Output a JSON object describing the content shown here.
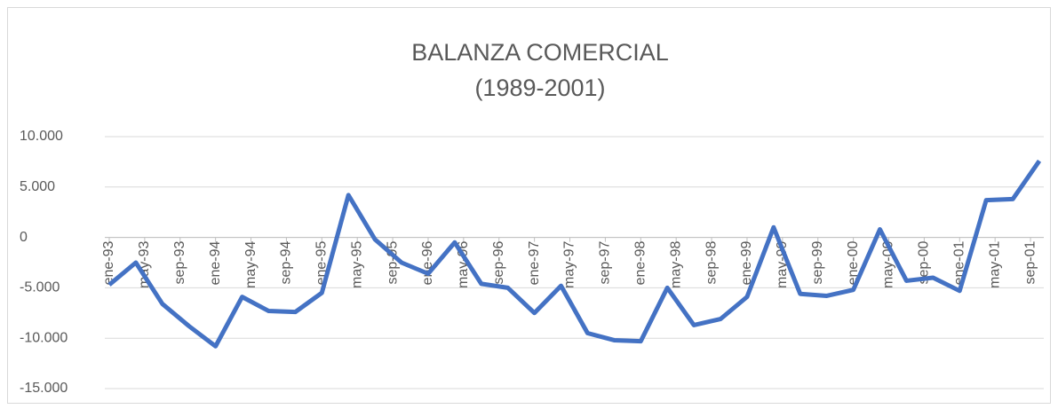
{
  "chart_data": {
    "type": "line",
    "title": [
      "BALANZA COMERCIAL",
      "(1989-2001)"
    ],
    "x": [
      0,
      3,
      6,
      9,
      12,
      15,
      18,
      21,
      24,
      27,
      30,
      33,
      36,
      39,
      42,
      45,
      48,
      51,
      54,
      57,
      60,
      63,
      66,
      69,
      72,
      75,
      78,
      81,
      84,
      87,
      90,
      93,
      96,
      99,
      102,
      105
    ],
    "series": [
      {
        "name": "Balanza comercial",
        "color": "#4472c4",
        "values": [
          -4700,
          -2500,
          -6600,
          -8800,
          -10800,
          -5900,
          -7300,
          -7400,
          -5500,
          4200,
          -200,
          -2500,
          -3600,
          -500,
          -4600,
          -5000,
          -7500,
          -4800,
          -9500,
          -10200,
          -10300,
          -5000,
          -8700,
          -8100,
          -5900,
          1000,
          -5600,
          -5800,
          -5200,
          800,
          -4300,
          -4000,
          -5300,
          3700,
          3800,
          7600
        ]
      }
    ],
    "xlim": [
      -0.5,
      105.5
    ],
    "xticks": [
      {
        "value": 0,
        "label": "ene-93"
      },
      {
        "value": 4,
        "label": "may-93"
      },
      {
        "value": 8,
        "label": "sep-93"
      },
      {
        "value": 12,
        "label": "ene-94"
      },
      {
        "value": 16,
        "label": "may-94"
      },
      {
        "value": 20,
        "label": "sep-94"
      },
      {
        "value": 24,
        "label": "ene-95"
      },
      {
        "value": 28,
        "label": "may-95"
      },
      {
        "value": 32,
        "label": "sep-95"
      },
      {
        "value": 36,
        "label": "ene-96"
      },
      {
        "value": 40,
        "label": "may-96"
      },
      {
        "value": 44,
        "label": "sep-96"
      },
      {
        "value": 48,
        "label": "ene-97"
      },
      {
        "value": 52,
        "label": "may-97"
      },
      {
        "value": 56,
        "label": "sep-97"
      },
      {
        "value": 60,
        "label": "ene-98"
      },
      {
        "value": 64,
        "label": "may-98"
      },
      {
        "value": 68,
        "label": "sep-98"
      },
      {
        "value": 72,
        "label": "ene-99"
      },
      {
        "value": 76,
        "label": "may-99"
      },
      {
        "value": 80,
        "label": "sep-99"
      },
      {
        "value": 84,
        "label": "ene-00"
      },
      {
        "value": 88,
        "label": "may-00"
      },
      {
        "value": 92,
        "label": "sep-00"
      },
      {
        "value": 96,
        "label": "ene-01"
      },
      {
        "value": 100,
        "label": "may-01"
      },
      {
        "value": 104,
        "label": "sep-01"
      }
    ],
    "ylim": [
      -15000,
      10000
    ],
    "yticks": [
      {
        "value": -15000,
        "label": "-15.000"
      },
      {
        "value": -10000,
        "label": "-10.000"
      },
      {
        "value": -5000,
        "label": "-5.000"
      },
      0,
      {
        "value": 5000,
        "label": "5.000"
      },
      {
        "value": 10000,
        "label": "10.000"
      }
    ],
    "grid": true
  }
}
